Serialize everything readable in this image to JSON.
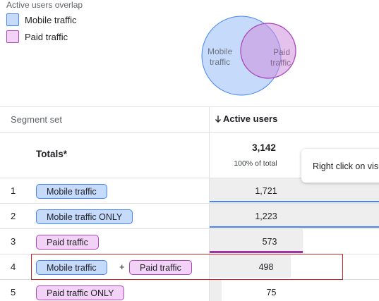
{
  "legend": {
    "title": "Active users overlap",
    "items": [
      {
        "label": "Mobile traffic",
        "fill": "#c6dafc",
        "stroke": "#4285f4"
      },
      {
        "label": "Paid traffic",
        "fill": "#f3d2f7",
        "stroke": "#ab47bc"
      }
    ]
  },
  "venn": {
    "mobile_label_1": "Mobile",
    "mobile_label_2": "traffic",
    "paid_label_1": "Paid",
    "paid_label_2": "traffic"
  },
  "table": {
    "col_segment": "Segment set",
    "col_active_users": "Active users",
    "sort_icon": "arrow-down-icon",
    "totals_label": "Totals*",
    "totals_value": "3,142",
    "totals_sub": "100% of total",
    "plus": "+",
    "rows": [
      {
        "num": "1",
        "chips": [
          {
            "label": "Mobile traffic",
            "color": "blue"
          }
        ],
        "value": "1,721",
        "share": 1.0
      },
      {
        "num": "2",
        "chips": [
          {
            "label": "Mobile traffic ONLY",
            "color": "blue"
          }
        ],
        "value": "1,223",
        "share": 0.711
      },
      {
        "num": "3",
        "chips": [
          {
            "label": "Paid traffic",
            "color": "pink"
          }
        ],
        "value": "573",
        "share": 0.333
      },
      {
        "num": "4",
        "chips": [
          {
            "label": "Mobile traffic",
            "color": "blue"
          },
          {
            "label": "Paid traffic",
            "color": "pink"
          }
        ],
        "value": "498",
        "share": 0.289
      },
      {
        "num": "5",
        "chips": [
          {
            "label": "Paid traffic ONLY",
            "color": "pink"
          }
        ],
        "value": "75",
        "share": 0.044
      }
    ]
  },
  "tooltip": {
    "text": "Right click on visualization"
  }
}
